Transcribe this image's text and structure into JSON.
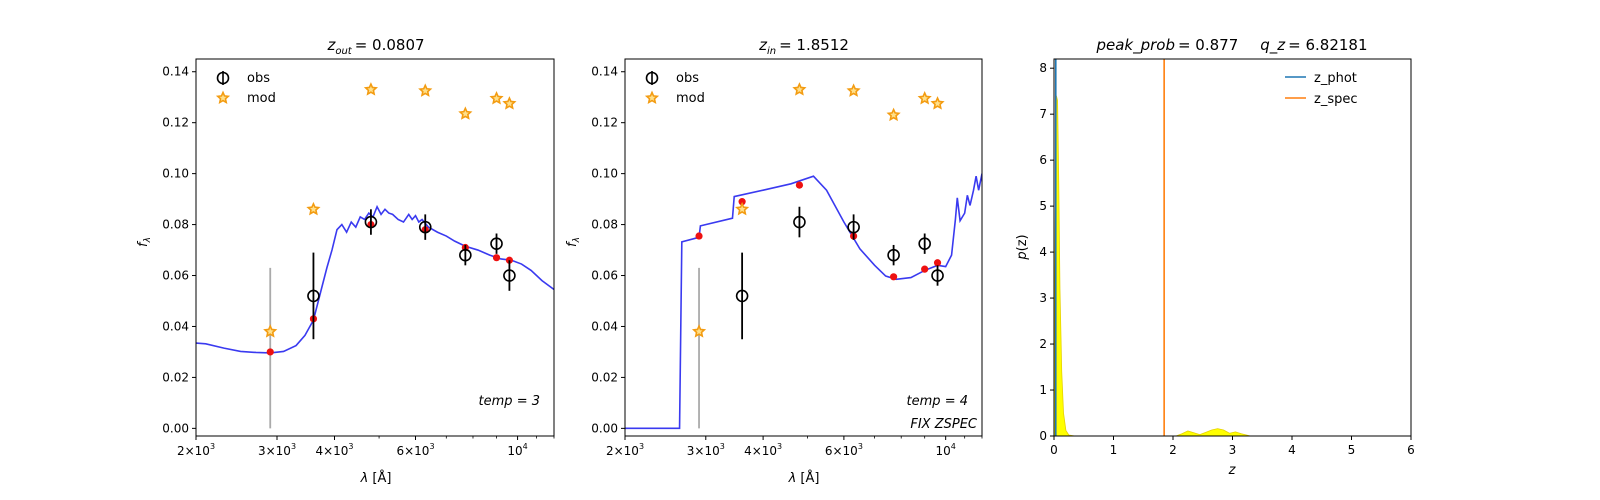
{
  "chart_data": [
    {
      "type": "scatter",
      "title": {
        "sym": "z",
        "sub": "out",
        "value": "= 0.0807"
      },
      "xlabel": {
        "sym": "λ",
        "unit": " [Å]"
      },
      "ylabel": {
        "sym": "f",
        "sub": "λ"
      },
      "xscale": "log",
      "xlim": [
        2000,
        12000
      ],
      "ylim": [
        -0.003,
        0.145
      ],
      "xticks": [
        {
          "v": 2000,
          "mant": "2",
          "exp": "3"
        },
        {
          "v": 3000,
          "mant": "3",
          "exp": "3"
        },
        {
          "v": 4000,
          "mant": "4",
          "exp": "3"
        },
        {
          "v": 6000,
          "mant": "6",
          "exp": "3"
        },
        {
          "v": 10000,
          "mant": "10",
          "exp": "4"
        }
      ],
      "yticks": [
        "0.00",
        "0.02",
        "0.04",
        "0.06",
        "0.08",
        "0.10",
        "0.12",
        "0.14"
      ],
      "legend": {
        "placement": "upper-left",
        "entries": [
          "obs",
          "mod"
        ]
      },
      "annotations": [
        {
          "text": "temp = 3",
          "position": "lower-right"
        }
      ],
      "obs": [
        {
          "x": 3600,
          "y": 0.052,
          "err": 0.017
        },
        {
          "x": 4800,
          "y": 0.081,
          "err": 0.005
        },
        {
          "x": 6300,
          "y": 0.079,
          "err": 0.005
        },
        {
          "x": 7700,
          "y": 0.068,
          "err": 0.004
        },
        {
          "x": 9000,
          "y": 0.0725,
          "err": 0.004
        },
        {
          "x": 9600,
          "y": 0.06,
          "err": 0.006
        }
      ],
      "limits": [
        {
          "x": 2900,
          "y0": 0.0,
          "y1": 0.063
        }
      ],
      "mod": [
        {
          "x": 2900,
          "y": 0.038
        },
        {
          "x": 3600,
          "y": 0.086
        },
        {
          "x": 4800,
          "y": 0.133
        },
        {
          "x": 6300,
          "y": 0.1325
        },
        {
          "x": 7700,
          "y": 0.1235
        },
        {
          "x": 9000,
          "y": 0.1295
        },
        {
          "x": 9600,
          "y": 0.1275
        }
      ],
      "model_points": [
        {
          "x": 2900,
          "y": 0.03
        },
        {
          "x": 3600,
          "y": 0.043
        },
        {
          "x": 4800,
          "y": 0.08
        },
        {
          "x": 6300,
          "y": 0.078
        },
        {
          "x": 7700,
          "y": 0.071
        },
        {
          "x": 9000,
          "y": 0.067
        },
        {
          "x": 9600,
          "y": 0.066
        }
      ],
      "sed": [
        [
          2000,
          0.0335
        ],
        [
          2100,
          0.0332
        ],
        [
          2300,
          0.0315
        ],
        [
          2500,
          0.0302
        ],
        [
          2700,
          0.0298
        ],
        [
          2900,
          0.0296
        ],
        [
          3100,
          0.0302
        ],
        [
          3300,
          0.0325
        ],
        [
          3450,
          0.0365
        ],
        [
          3600,
          0.0425
        ],
        [
          3750,
          0.055
        ],
        [
          3850,
          0.063
        ],
        [
          3950,
          0.07
        ],
        [
          4050,
          0.078
        ],
        [
          4150,
          0.08
        ],
        [
          4250,
          0.077
        ],
        [
          4350,
          0.081
        ],
        [
          4450,
          0.079
        ],
        [
          4550,
          0.083
        ],
        [
          4650,
          0.082
        ],
        [
          4750,
          0.0845
        ],
        [
          4850,
          0.083
        ],
        [
          4950,
          0.087
        ],
        [
          5050,
          0.084
        ],
        [
          5150,
          0.086
        ],
        [
          5250,
          0.0845
        ],
        [
          5350,
          0.084
        ],
        [
          5500,
          0.082
        ],
        [
          5650,
          0.081
        ],
        [
          5800,
          0.084
        ],
        [
          5900,
          0.082
        ],
        [
          6000,
          0.0835
        ],
        [
          6100,
          0.081
        ],
        [
          6200,
          0.082
        ],
        [
          6400,
          0.079
        ],
        [
          6700,
          0.077
        ],
        [
          7000,
          0.0755
        ],
        [
          7300,
          0.0735
        ],
        [
          7700,
          0.0715
        ],
        [
          8200,
          0.07
        ],
        [
          8700,
          0.068
        ],
        [
          9200,
          0.0665
        ],
        [
          9700,
          0.066
        ],
        [
          10200,
          0.0645
        ],
        [
          10700,
          0.062
        ],
        [
          11300,
          0.058
        ],
        [
          12000,
          0.0545
        ]
      ]
    },
    {
      "type": "scatter",
      "title": {
        "sym": "z",
        "sub": "in",
        "value": "= 1.8512"
      },
      "xlabel": {
        "sym": "λ",
        "unit": " [Å]"
      },
      "ylabel": {
        "sym": "f",
        "sub": "λ"
      },
      "xscale": "log",
      "xlim": [
        2000,
        12000
      ],
      "ylim": [
        -0.003,
        0.145
      ],
      "xticks": [
        {
          "v": 2000,
          "mant": "2",
          "exp": "3"
        },
        {
          "v": 3000,
          "mant": "3",
          "exp": "3"
        },
        {
          "v": 4000,
          "mant": "4",
          "exp": "3"
        },
        {
          "v": 6000,
          "mant": "6",
          "exp": "3"
        },
        {
          "v": 10000,
          "mant": "10",
          "exp": "4"
        }
      ],
      "yticks": [
        "0.00",
        "0.02",
        "0.04",
        "0.06",
        "0.08",
        "0.10",
        "0.12",
        "0.14"
      ],
      "legend": {
        "placement": "upper-left",
        "entries": [
          "obs",
          "mod"
        ]
      },
      "annotations": [
        {
          "text": "temp = 4",
          "position": "lower-right"
        },
        {
          "text": "FIX ZSPEC",
          "position": "bottom-right"
        }
      ],
      "obs": [
        {
          "x": 3600,
          "y": 0.052,
          "err": 0.017
        },
        {
          "x": 4800,
          "y": 0.081,
          "err": 0.006
        },
        {
          "x": 6300,
          "y": 0.079,
          "err": 0.005
        },
        {
          "x": 7700,
          "y": 0.068,
          "err": 0.004
        },
        {
          "x": 9000,
          "y": 0.0725,
          "err": 0.004
        },
        {
          "x": 9600,
          "y": 0.06,
          "err": 0.004
        }
      ],
      "limits": [
        {
          "x": 2900,
          "y0": 0.0,
          "y1": 0.063
        }
      ],
      "mod": [
        {
          "x": 2900,
          "y": 0.038
        },
        {
          "x": 3600,
          "y": 0.086
        },
        {
          "x": 4800,
          "y": 0.133
        },
        {
          "x": 6300,
          "y": 0.1325
        },
        {
          "x": 7700,
          "y": 0.123
        },
        {
          "x": 9000,
          "y": 0.1295
        },
        {
          "x": 9600,
          "y": 0.1275
        }
      ],
      "model_points": [
        {
          "x": 2900,
          "y": 0.0755
        },
        {
          "x": 3600,
          "y": 0.089
        },
        {
          "x": 4800,
          "y": 0.0955
        },
        {
          "x": 6300,
          "y": 0.0755
        },
        {
          "x": 7700,
          "y": 0.0595
        },
        {
          "x": 9000,
          "y": 0.0625
        },
        {
          "x": 9600,
          "y": 0.065
        }
      ],
      "sed": [
        [
          2000,
          0.0
        ],
        [
          2630,
          0.0
        ],
        [
          2660,
          0.0732
        ],
        [
          2900,
          0.075
        ],
        [
          2920,
          0.0795
        ],
        [
          3430,
          0.0825
        ],
        [
          3460,
          0.091
        ],
        [
          4000,
          0.0935
        ],
        [
          4600,
          0.096
        ],
        [
          5150,
          0.099
        ],
        [
          5500,
          0.0935
        ],
        [
          6000,
          0.081
        ],
        [
          6500,
          0.0705
        ],
        [
          7000,
          0.064
        ],
        [
          7400,
          0.0598
        ],
        [
          7800,
          0.0585
        ],
        [
          8400,
          0.0592
        ],
        [
          9000,
          0.062
        ],
        [
          9600,
          0.064
        ],
        [
          10000,
          0.0635
        ],
        [
          10300,
          0.068
        ],
        [
          10500,
          0.082
        ],
        [
          10600,
          0.0905
        ],
        [
          10750,
          0.0815
        ],
        [
          11000,
          0.0845
        ],
        [
          11150,
          0.0915
        ],
        [
          11300,
          0.0875
        ],
        [
          11500,
          0.0935
        ],
        [
          11650,
          0.099
        ],
        [
          11800,
          0.0935
        ],
        [
          12000,
          0.1
        ]
      ]
    },
    {
      "type": "line",
      "title": {
        "peak_sym": "peak_prob",
        "peak_value": "= 0.877",
        "q_sym": "q_z",
        "q_value": "= 6.82181"
      },
      "xlabel": "z",
      "ylabel": {
        "sym": "p",
        "arg": "(z)"
      },
      "xlim": [
        0,
        6
      ],
      "ylim": [
        0,
        8.2
      ],
      "xticks": [
        "0",
        "1",
        "2",
        "3",
        "4",
        "5",
        "6"
      ],
      "yticks": [
        "0",
        "1",
        "2",
        "3",
        "4",
        "5",
        "6",
        "7",
        "8"
      ],
      "legend": {
        "placement": "upper-right",
        "entries": [
          "z_phot",
          "z_spec"
        ]
      },
      "z_spec": 1.8512,
      "z_phot_peak": 0.03,
      "colors": {
        "z_phot": "#1f77b4",
        "z_spec": "#ff7f0e",
        "pdf": "#ffff00"
      },
      "pdf": [
        [
          0.0,
          0.0
        ],
        [
          0.02,
          4.5
        ],
        [
          0.04,
          7.4
        ],
        [
          0.06,
          7.3
        ],
        [
          0.08,
          5.5
        ],
        [
          0.1,
          3.2
        ],
        [
          0.13,
          1.4
        ],
        [
          0.16,
          0.5
        ],
        [
          0.2,
          0.12
        ],
        [
          0.25,
          0.02
        ],
        [
          0.35,
          0.0
        ],
        [
          2.05,
          0.0
        ],
        [
          2.15,
          0.05
        ],
        [
          2.25,
          0.11
        ],
        [
          2.35,
          0.07
        ],
        [
          2.45,
          0.03
        ],
        [
          2.55,
          0.08
        ],
        [
          2.65,
          0.13
        ],
        [
          2.75,
          0.16
        ],
        [
          2.85,
          0.13
        ],
        [
          2.95,
          0.06
        ],
        [
          3.05,
          0.09
        ],
        [
          3.15,
          0.05
        ],
        [
          3.3,
          0.0
        ],
        [
          5.0,
          0.0
        ]
      ]
    }
  ]
}
